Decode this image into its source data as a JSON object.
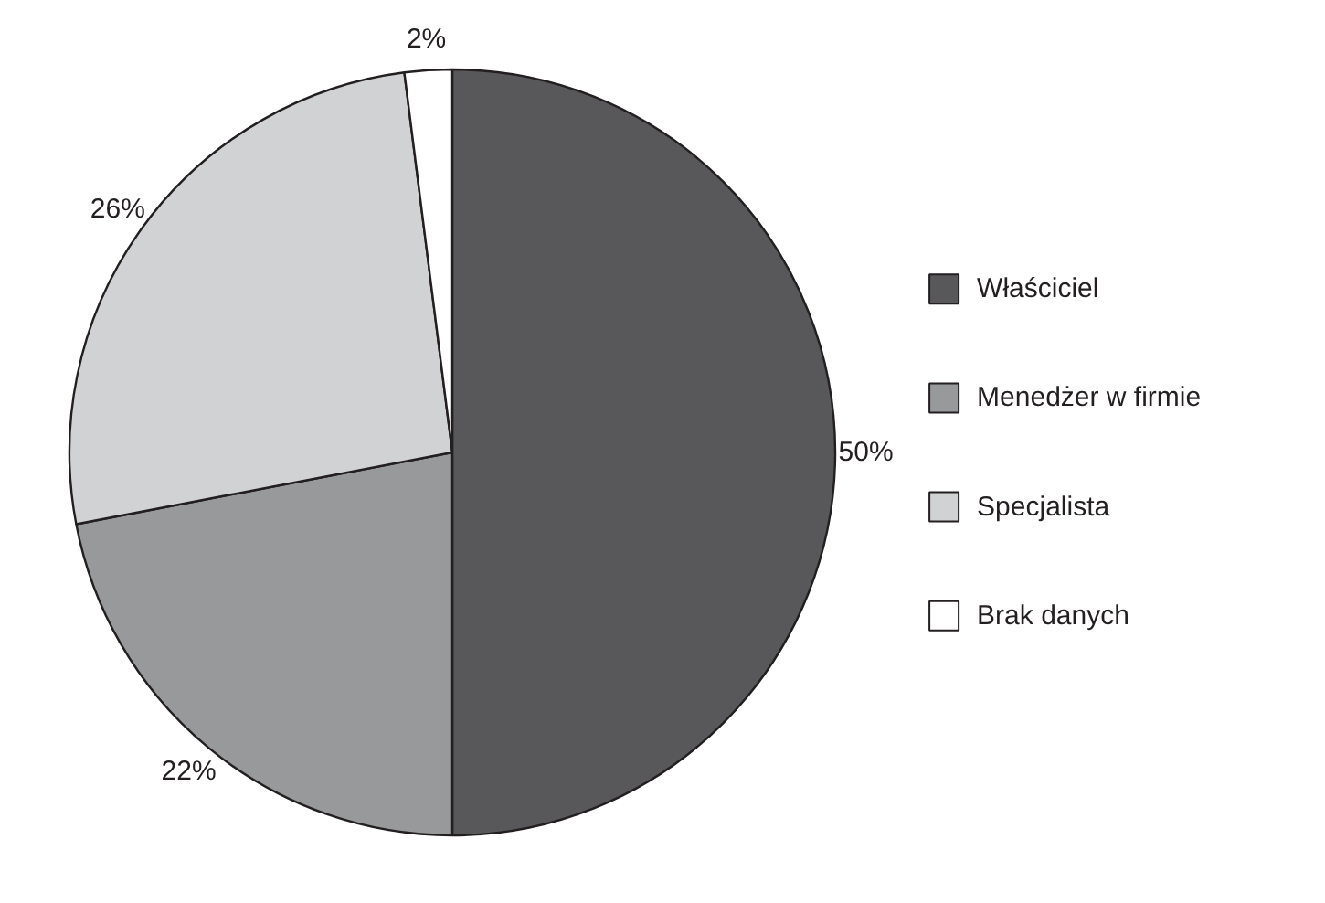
{
  "chart_data": {
    "type": "pie",
    "categories": [
      "Właściciel",
      "Menedżer w firmie",
      "Specjalista",
      "Brak danych"
    ],
    "values": [
      50,
      22,
      26,
      2
    ],
    "value_labels": [
      "50%",
      "22%",
      "26%",
      "2%"
    ],
    "colors": [
      "#58585a",
      "#98999b",
      "#d1d2d4",
      "#ffffff"
    ],
    "legend": "right"
  }
}
